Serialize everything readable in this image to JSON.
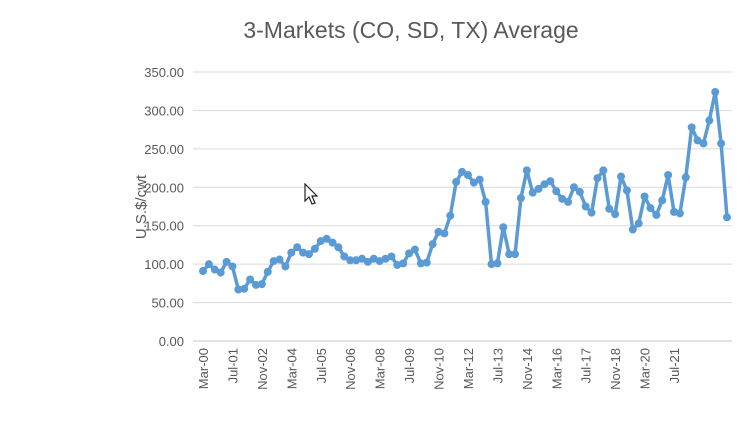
{
  "chart_data": {
    "type": "line",
    "title": "3-Markets (CO, SD, TX) Average",
    "xlabel": "",
    "ylabel": "U.S.$/cwt",
    "ylim": [
      0,
      350
    ],
    "yticks": [
      "0.00",
      "50.00",
      "100.00",
      "150.00",
      "200.00",
      "250.00",
      "300.00",
      "350.00"
    ],
    "grid": true,
    "legend": "none",
    "line_color": "#5b9bd5",
    "x_tick_labels": [
      "Mar-00",
      "Jul-01",
      "Nov-02",
      "Mar-04",
      "Jul-05",
      "Nov-06",
      "Mar-08",
      "Jul-09",
      "Nov-10",
      "Mar-12",
      "Jul-13",
      "Nov-14",
      "Mar-16",
      "Jul-17",
      "Nov-18",
      "Mar-20",
      "Jul-21"
    ],
    "values": [
      91,
      100,
      93,
      89,
      103,
      97,
      67,
      68,
      80,
      73,
      74,
      90,
      104,
      106,
      97,
      115,
      122,
      115,
      113,
      120,
      130,
      133,
      128,
      122,
      110,
      105,
      105,
      107,
      103,
      107,
      104,
      107,
      110,
      99,
      101,
      114,
      119,
      101,
      102,
      126,
      142,
      140,
      163,
      207,
      220,
      216,
      206,
      210,
      181,
      100,
      101,
      148,
      113,
      113,
      186,
      222,
      193,
      198,
      204,
      208,
      195,
      185,
      181,
      200,
      194,
      175,
      167,
      212,
      222,
      172,
      165,
      214,
      196,
      145,
      153,
      188,
      173,
      164,
      183,
      216,
      168,
      166,
      213,
      278,
      261,
      257,
      287,
      324,
      257,
      161
    ]
  },
  "cursor_icon": "mouse-pointer-icon"
}
